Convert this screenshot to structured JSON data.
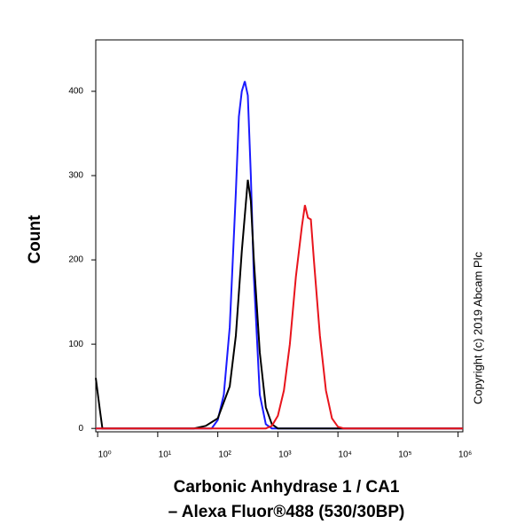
{
  "chart_data": {
    "type": "line",
    "log_x": true,
    "ylabel": "Count",
    "xlabel": [
      "Carbonic Anhydrase 1 / CA1",
      "– Alexa Fluor®488 (530/30BP)"
    ],
    "annotation": "Copyright (c) 2019 Abcam Plc",
    "xlim": [
      0.93,
      1200000
    ],
    "ylim": [
      -4,
      461
    ],
    "xticks": [
      {
        "value": 1,
        "label": "10⁰"
      },
      {
        "value": 10,
        "label": "10¹"
      },
      {
        "value": 100,
        "label": "10²"
      },
      {
        "value": 1000,
        "label": "10³"
      },
      {
        "value": 10000,
        "label": "10⁴"
      },
      {
        "value": 100000,
        "label": "10⁵"
      },
      {
        "value": 1000000,
        "label": "10⁶"
      }
    ],
    "yticks": [
      0,
      100,
      200,
      300,
      400
    ],
    "series": [
      {
        "color": "#1a1aff",
        "x": [
          0.93,
          79,
          100,
          126,
          158,
          200,
          224,
          251,
          282,
          316,
          355,
          398,
          501,
          631,
          794,
          1200000
        ],
        "values": [
          0,
          0,
          10,
          40,
          120,
          280,
          370,
          400,
          412,
          395,
          300,
          180,
          40,
          5,
          0,
          0
        ]
      },
      {
        "color": "#000000",
        "x": [
          0.93,
          1.1,
          1.2,
          40,
          63,
          100,
          158,
          200,
          251,
          316,
          355,
          398,
          501,
          631,
          794,
          1000,
          1200000
        ],
        "values": [
          60,
          20,
          0,
          0,
          3,
          12,
          50,
          110,
          210,
          295,
          270,
          200,
          90,
          25,
          5,
          0,
          0
        ]
      },
      {
        "color": "#e8141c",
        "x": [
          0.93,
          631,
          794,
          1000,
          1259,
          1585,
          1995,
          2512,
          2818,
          3162,
          3548,
          3981,
          5012,
          6310,
          7943,
          10000,
          12589,
          1200000
        ],
        "values": [
          0,
          0,
          3,
          15,
          45,
          100,
          180,
          240,
          265,
          250,
          248,
          200,
          110,
          45,
          12,
          2,
          0,
          0
        ]
      }
    ]
  }
}
